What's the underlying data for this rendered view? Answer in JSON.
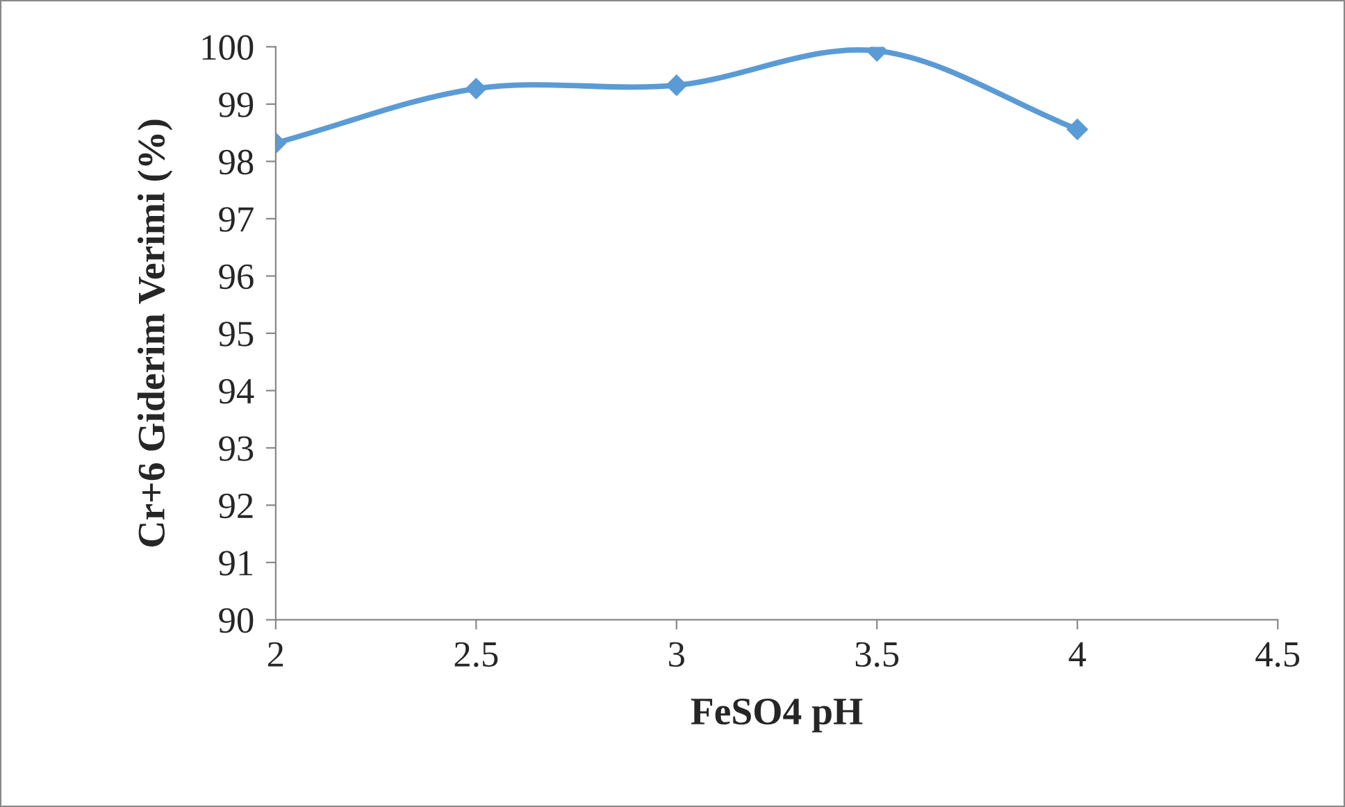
{
  "chart_data": {
    "type": "line",
    "xlabel": "FeSO4 pH",
    "ylabel": "Cr+6 Giderim Verimi (%)",
    "x": [
      2,
      2.5,
      3,
      3.5,
      4
    ],
    "series": [
      {
        "color": "#5b9bd5",
        "values": [
          98.32,
          99.27,
          99.33,
          99.93,
          98.56
        ]
      }
    ],
    "xlim": [
      2,
      4.5
    ],
    "xticks": [
      2,
      2.5,
      3,
      3.5,
      4,
      4.5
    ],
    "ylim": [
      90,
      100
    ],
    "yticks": [
      90,
      91,
      92,
      93,
      94,
      95,
      96,
      97,
      98,
      99,
      100
    ],
    "grid": false,
    "legend": false,
    "marker": "diamond",
    "line_style": "solid"
  }
}
